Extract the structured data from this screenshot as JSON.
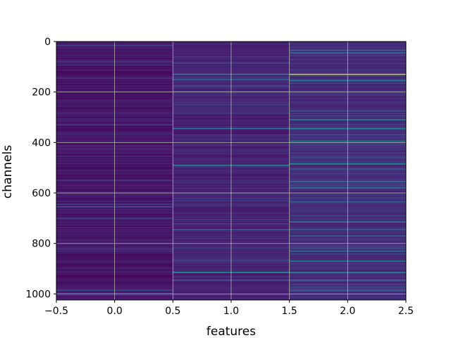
{
  "chart_data": {
    "type": "heatmap",
    "xlabel": "features",
    "ylabel": "channels",
    "xlim": [
      -0.5,
      2.5
    ],
    "ylim": [
      1024,
      0
    ],
    "y_inverted": true,
    "n_rows": 1024,
    "n_cols": 3,
    "colormap": "viridis",
    "grid": true,
    "value_range": [
      0,
      1
    ],
    "x_ticks": [
      -0.5,
      0.0,
      0.5,
      1.0,
      1.5,
      2.0,
      2.5
    ],
    "x_tick_labels": [
      "−0.5",
      "0.0",
      "0.5",
      "1.0",
      "1.5",
      "2.0",
      "2.5"
    ],
    "y_ticks": [
      0,
      200,
      400,
      600,
      800,
      1000
    ],
    "y_tick_labels": [
      "0",
      "200",
      "400",
      "600",
      "800",
      "1000"
    ],
    "background_levels": [
      0.06,
      0.1,
      0.13
    ],
    "highlights": [
      {
        "col": 0,
        "row": 15,
        "value": 0.2
      },
      {
        "col": 0,
        "row": 80,
        "value": 0.18
      },
      {
        "col": 0,
        "row": 330,
        "value": 0.2
      },
      {
        "col": 0,
        "row": 655,
        "value": 0.25
      },
      {
        "col": 0,
        "row": 985,
        "value": 0.25
      },
      {
        "col": 1,
        "row": 130,
        "value": 0.45
      },
      {
        "col": 1,
        "row": 150,
        "value": 0.3
      },
      {
        "col": 1,
        "row": 345,
        "value": 0.38
      },
      {
        "col": 1,
        "row": 490,
        "value": 0.42
      },
      {
        "col": 1,
        "row": 745,
        "value": 0.3
      },
      {
        "col": 1,
        "row": 915,
        "value": 0.48
      },
      {
        "col": 1,
        "row": 945,
        "value": 0.3
      },
      {
        "col": 2,
        "row": 35,
        "value": 0.35
      },
      {
        "col": 2,
        "row": 45,
        "value": 0.38
      },
      {
        "col": 2,
        "row": 130,
        "value": 0.88
      },
      {
        "col": 2,
        "row": 155,
        "value": 0.45
      },
      {
        "col": 2,
        "row": 310,
        "value": 0.42
      },
      {
        "col": 2,
        "row": 345,
        "value": 0.45
      },
      {
        "col": 2,
        "row": 395,
        "value": 0.42
      },
      {
        "col": 2,
        "row": 485,
        "value": 0.48
      },
      {
        "col": 2,
        "row": 505,
        "value": 0.3
      },
      {
        "col": 2,
        "row": 555,
        "value": 0.38
      },
      {
        "col": 2,
        "row": 580,
        "value": 0.35
      },
      {
        "col": 2,
        "row": 635,
        "value": 0.3
      },
      {
        "col": 2,
        "row": 715,
        "value": 0.42
      },
      {
        "col": 2,
        "row": 745,
        "value": 0.3
      },
      {
        "col": 2,
        "row": 770,
        "value": 0.32
      },
      {
        "col": 2,
        "row": 830,
        "value": 0.35
      },
      {
        "col": 2,
        "row": 870,
        "value": 0.42
      },
      {
        "col": 2,
        "row": 915,
        "value": 0.45
      },
      {
        "col": 2,
        "row": 945,
        "value": 0.35
      },
      {
        "col": 2,
        "row": 985,
        "value": 0.32
      }
    ]
  }
}
